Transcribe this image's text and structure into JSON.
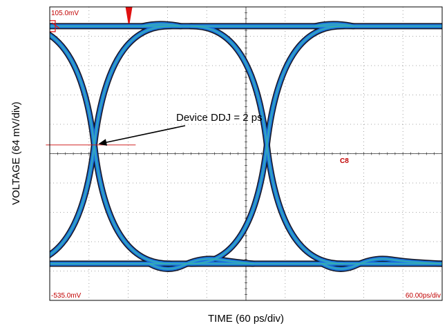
{
  "chart_data": {
    "type": "line",
    "title": "",
    "xlabel": "TIME (60 ps/div)",
    "ylabel": "VOLTAGE (64 mV/div)",
    "x_divisions": 10,
    "y_divisions": 10,
    "x_units_per_div_ps": 60,
    "y_units_per_div_mV": 64,
    "xlim_ps": [
      0,
      600
    ],
    "ylim_mV": [
      -535,
      105
    ],
    "grid": true,
    "scope_labels": {
      "top_left": "105.0mV",
      "bottom_left": "-535.0mV",
      "bottom_right": "60.00ps/div",
      "marker": "C8"
    },
    "signal_levels_mV": {
      "high": 63,
      "low": -455
    },
    "crossings_ps": [
      68,
      332
    ],
    "trace_color": "#1a6fd0",
    "annotation": {
      "text": "Device DDJ = 2 ps",
      "target": {
        "x_ps": 68,
        "y_mV": -196
      }
    }
  }
}
